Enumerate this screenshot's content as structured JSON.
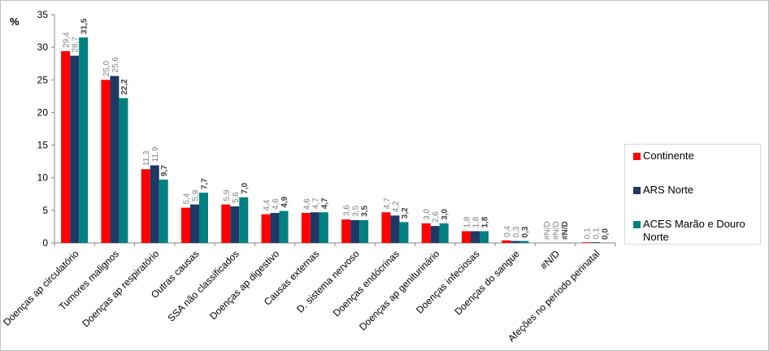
{
  "chart_data": {
    "type": "bar",
    "ylabel": "%",
    "ylim": [
      0,
      35
    ],
    "yticks": [
      "0",
      "5",
      "10",
      "15",
      "20",
      "25",
      "30",
      "35"
    ],
    "legend_position": "right",
    "categories": [
      "Doenças ap circulatório",
      "Tumores malignos",
      "Doenças ap respiratório",
      "Outras causas",
      "SSA não classificados",
      "Doenças ap digestivo",
      "Causas externas",
      "D. sistema nervoso",
      "Doenças endócrinas",
      "Doenças ap geniturinário",
      "Doenças infeciosas",
      "Doenças do sangue",
      "#N/D",
      "Afeções no período perinatal"
    ],
    "series": [
      {
        "name": "Continente",
        "color": "#ff0000",
        "values": [
          29.4,
          25.0,
          11.3,
          5.4,
          5.9,
          4.4,
          4.6,
          3.6,
          4.7,
          3.0,
          1.8,
          0.4,
          0,
          0.1
        ],
        "labels": [
          "29,4",
          "25,0",
          "11,3",
          "5,4",
          "5,9",
          "4,4",
          "4,6",
          "3,6",
          "4,7",
          "3,0",
          "1,8",
          "0,4",
          "#N/D",
          "0,1"
        ]
      },
      {
        "name": "ARS Norte",
        "color": "#1f3864",
        "values": [
          28.7,
          25.6,
          11.9,
          5.9,
          5.6,
          4.6,
          4.7,
          3.5,
          4.2,
          2.6,
          1.8,
          0.3,
          0,
          0.1
        ],
        "labels": [
          "28,7",
          "25,6",
          "11,9",
          "5,9",
          "5,6",
          "4,6",
          "4,7",
          "3,5",
          "4,2",
          "2,6",
          "1,8",
          "0,3",
          "#N/D",
          "0,1"
        ]
      },
      {
        "name": "ACES Marão e Douro Norte",
        "color": "#008080",
        "values": [
          31.5,
          22.2,
          9.7,
          7.7,
          7.0,
          4.9,
          4.7,
          3.5,
          3.2,
          3.0,
          1.8,
          0.3,
          0,
          0.0
        ],
        "labels": [
          "31,5",
          "22,2",
          "9,7",
          "7,7",
          "7,0",
          "4,9",
          "4,7",
          "3,5",
          "3,2",
          "3,0",
          "1,8",
          "0,3",
          "#N/D",
          "0,0"
        ]
      }
    ]
  }
}
